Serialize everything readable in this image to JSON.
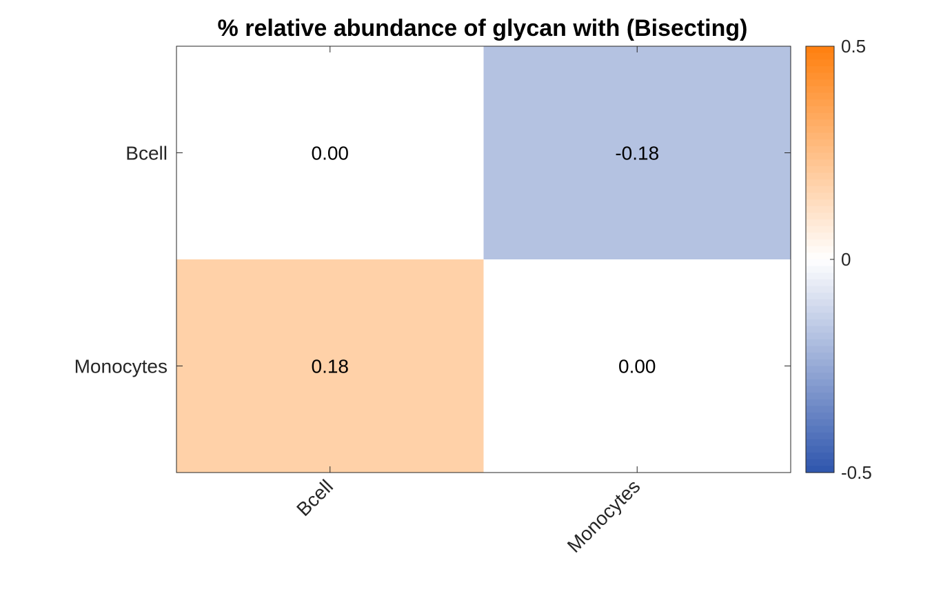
{
  "chart_data": {
    "type": "heatmap",
    "title": "% relative abundance of glycan with (Bisecting)",
    "x_categories": [
      "Bcell",
      "Monocytes"
    ],
    "y_categories": [
      "Bcell",
      "Monocytes"
    ],
    "values": [
      [
        0.0,
        -0.18
      ],
      [
        0.18,
        0.0
      ]
    ],
    "cell_labels": [
      [
        "0.00",
        "-0.18"
      ],
      [
        "0.18",
        "0.00"
      ]
    ],
    "colorbar": {
      "range": [
        -0.5,
        0.5
      ],
      "ticks": [
        0.5,
        0,
        -0.5
      ],
      "tick_labels": [
        "0.5",
        "0",
        "-0.5"
      ],
      "low_color": "#2E55AD",
      "mid_color": "#FFFFFF",
      "high_color": "#FF7F0E"
    }
  }
}
